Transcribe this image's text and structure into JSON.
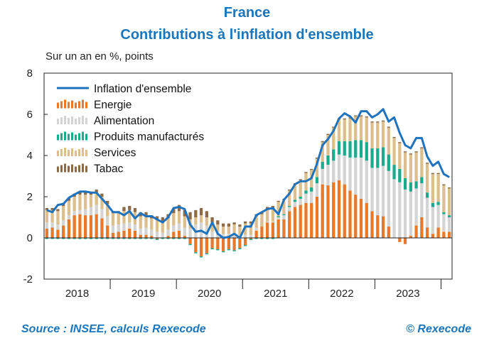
{
  "header": {
    "title": "France",
    "subtitle": "Contributions à l'inflation d'ensemble",
    "unit": "Sur un an en %, points"
  },
  "footer": {
    "source": "Source : INSEE, calculs Rexecode",
    "copyright": "© Rexecode"
  },
  "colors": {
    "line": "#1f73be",
    "Energie": "#e8782a",
    "Alimentation": "#d4d4d4",
    "Produits manufacturés": "#1aaa8c",
    "Services": "#dcbf8c",
    "Tabac": "#8b6a45"
  },
  "chart_data": {
    "type": "bar",
    "stacked": true,
    "frequency": "monthly",
    "start": "2018-01",
    "end": "2024-02",
    "ylim": [
      -2,
      8
    ],
    "yticks": [
      -2,
      0,
      2,
      4,
      6,
      8
    ],
    "x_tick_labels": [
      "2018",
      "2019",
      "2020",
      "2021",
      "2022",
      "2023"
    ],
    "legend_position": "top-left",
    "grid": false,
    "series": [
      {
        "name": "Energie",
        "kind": "bar",
        "values": [
          0.45,
          0.5,
          0.4,
          0.6,
          0.9,
          1.1,
          1.15,
          1.1,
          1.1,
          1.15,
          0.95,
          0.6,
          0.25,
          0.3,
          0.35,
          0.45,
          0.35,
          0.15,
          0.15,
          0.1,
          -0.05,
          0.0,
          0.1,
          0.3,
          0.35,
          0.1,
          -0.3,
          -0.7,
          -0.9,
          -0.75,
          -0.5,
          -0.55,
          -0.65,
          -0.55,
          -0.6,
          -0.5,
          -0.35,
          -0.05,
          0.35,
          0.55,
          0.75,
          0.75,
          0.9,
          0.9,
          1.3,
          1.5,
          1.6,
          1.7,
          1.7,
          2.0,
          2.6,
          2.55,
          2.7,
          2.8,
          2.6,
          2.3,
          2.1,
          1.9,
          1.7,
          1.3,
          1.1,
          1.05,
          0.55,
          0.0,
          -0.2,
          -0.3,
          0.1,
          0.6,
          1.0,
          0.5,
          0.2,
          0.5,
          0.3,
          0.3
        ]
      },
      {
        "name": "Alimentation",
        "kind": "bar",
        "values": [
          0.3,
          0.25,
          0.25,
          0.25,
          0.2,
          0.2,
          0.2,
          0.3,
          0.4,
          0.45,
          0.45,
          0.45,
          0.35,
          0.35,
          0.35,
          0.3,
          0.3,
          0.3,
          0.35,
          0.3,
          0.3,
          0.25,
          0.3,
          0.3,
          0.35,
          0.4,
          0.45,
          0.65,
          0.75,
          0.6,
          0.3,
          0.3,
          0.2,
          0.2,
          0.25,
          0.15,
          0.15,
          0.15,
          0.15,
          0.0,
          0.05,
          0.05,
          0.1,
          0.2,
          0.2,
          0.25,
          0.3,
          0.45,
          0.55,
          0.65,
          0.75,
          1.0,
          1.05,
          1.25,
          1.4,
          1.6,
          1.8,
          2.0,
          2.05,
          2.1,
          2.3,
          2.45,
          2.7,
          2.85,
          2.7,
          2.35,
          2.15,
          1.8,
          1.65,
          1.45,
          1.3,
          1.1,
          0.85,
          0.7
        ]
      },
      {
        "name": "Produits manufacturés",
        "kind": "bar",
        "values": [
          -0.05,
          -0.05,
          -0.05,
          -0.05,
          -0.05,
          -0.05,
          -0.05,
          -0.05,
          -0.05,
          -0.05,
          -0.05,
          -0.05,
          -0.05,
          -0.05,
          -0.05,
          -0.05,
          -0.05,
          -0.05,
          -0.05,
          -0.05,
          -0.05,
          -0.05,
          -0.05,
          -0.05,
          -0.05,
          -0.05,
          -0.05,
          -0.05,
          -0.05,
          -0.05,
          -0.05,
          -0.05,
          -0.05,
          -0.05,
          -0.05,
          -0.05,
          -0.05,
          -0.05,
          -0.05,
          -0.05,
          -0.05,
          -0.05,
          0.05,
          0.05,
          0.05,
          0.1,
          0.1,
          0.15,
          0.2,
          0.3,
          0.35,
          0.45,
          0.55,
          0.65,
          0.7,
          0.8,
          0.85,
          0.85,
          0.9,
          0.95,
          0.95,
          0.9,
          0.8,
          0.7,
          0.65,
          0.55,
          0.45,
          0.35,
          0.3,
          0.25,
          0.2,
          0.15,
          0.1,
          0.1
        ]
      },
      {
        "name": "Services",
        "kind": "bar",
        "values": [
          0.6,
          0.6,
          0.65,
          0.7,
          0.7,
          0.7,
          0.75,
          0.7,
          0.6,
          0.6,
          0.6,
          0.6,
          0.6,
          0.55,
          0.6,
          0.6,
          0.6,
          0.6,
          0.6,
          0.55,
          0.6,
          0.55,
          0.55,
          0.6,
          0.6,
          0.55,
          0.45,
          0.35,
          0.35,
          0.4,
          0.45,
          0.35,
          0.35,
          0.35,
          0.4,
          0.4,
          0.55,
          0.55,
          0.55,
          0.6,
          0.6,
          0.65,
          0.7,
          0.7,
          0.75,
          0.75,
          0.8,
          0.85,
          0.85,
          0.9,
          0.95,
          1.0,
          1.05,
          1.05,
          1.05,
          1.1,
          1.15,
          1.15,
          1.2,
          1.25,
          1.25,
          1.25,
          1.3,
          1.3,
          1.25,
          1.25,
          1.35,
          1.4,
          1.4,
          1.4,
          1.4,
          1.35,
          1.3,
          1.3
        ]
      },
      {
        "name": "Tabac",
        "kind": "bar",
        "values": [
          0.1,
          0.1,
          0.1,
          0.15,
          0.15,
          0.15,
          0.15,
          0.15,
          0.15,
          0.15,
          0.15,
          0.15,
          0.1,
          0.1,
          0.2,
          0.2,
          0.2,
          0.2,
          0.15,
          0.15,
          0.15,
          0.2,
          0.2,
          0.2,
          0.3,
          0.3,
          0.35,
          0.35,
          0.35,
          0.3,
          0.25,
          0.2,
          0.15,
          0.15,
          0.1,
          0.1,
          0.1,
          0.1,
          0.1,
          0.1,
          0.1,
          0.1,
          0.05,
          0.05,
          0.05,
          0.05,
          0.05,
          0.05,
          0.05,
          0.05,
          0.05,
          0.05,
          0.05,
          0.05,
          0.05,
          0.05,
          0.05,
          0.05,
          0.05,
          0.05,
          0.05,
          0.05,
          0.05,
          0.05,
          0.05,
          0.05,
          0.05,
          0.05,
          0.05,
          0.05,
          0.05,
          0.05,
          0.05,
          0.05
        ]
      },
      {
        "name": "Inflation d'ensemble",
        "kind": "line",
        "values": [
          1.35,
          1.25,
          1.6,
          1.65,
          1.95,
          2.1,
          2.25,
          2.25,
          2.2,
          2.2,
          1.9,
          1.6,
          1.25,
          1.25,
          1.1,
          1.3,
          0.95,
          1.2,
          1.05,
          1.05,
          0.9,
          0.75,
          1.0,
          1.45,
          1.5,
          1.4,
          0.65,
          0.3,
          0.35,
          0.2,
          0.75,
          0.2,
          0.0,
          0.05,
          0.2,
          0.0,
          0.55,
          0.55,
          1.1,
          1.25,
          1.4,
          1.45,
          1.15,
          1.85,
          2.15,
          2.6,
          2.75,
          2.75,
          2.9,
          3.6,
          4.5,
          4.8,
          5.2,
          5.8,
          6.05,
          5.9,
          5.6,
          6.15,
          6.15,
          5.85,
          6.0,
          6.25,
          5.65,
          5.85,
          5.1,
          4.5,
          4.35,
          4.85,
          4.85,
          3.95,
          3.5,
          3.7,
          3.1,
          2.95
        ]
      }
    ]
  }
}
